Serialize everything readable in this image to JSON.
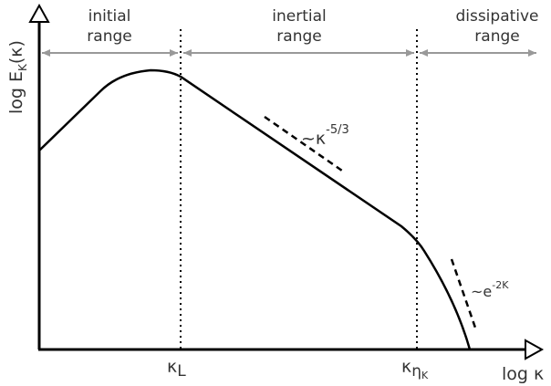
{
  "regions": [
    {
      "lines": [
        "initial",
        "range"
      ]
    },
    {
      "lines": [
        "inertial",
        "range"
      ]
    },
    {
      "lines": [
        "dissipative",
        "range"
      ]
    }
  ],
  "y_axis_label": {
    "main": "log E",
    "sub": "K",
    "rest": "(κ)"
  },
  "x_axis_label": "log κ",
  "markers": {
    "kappa_L": {
      "symbol": "κ",
      "sub": "L"
    },
    "kappa_eta": {
      "symbol": "κ",
      "sub": "η",
      "subsub": "K"
    }
  },
  "annotations": {
    "inertial_slope": {
      "base": "~κ",
      "sup": "-5/3"
    },
    "dissipative_decay": {
      "base": "~e",
      "sup": "-2K"
    }
  }
}
